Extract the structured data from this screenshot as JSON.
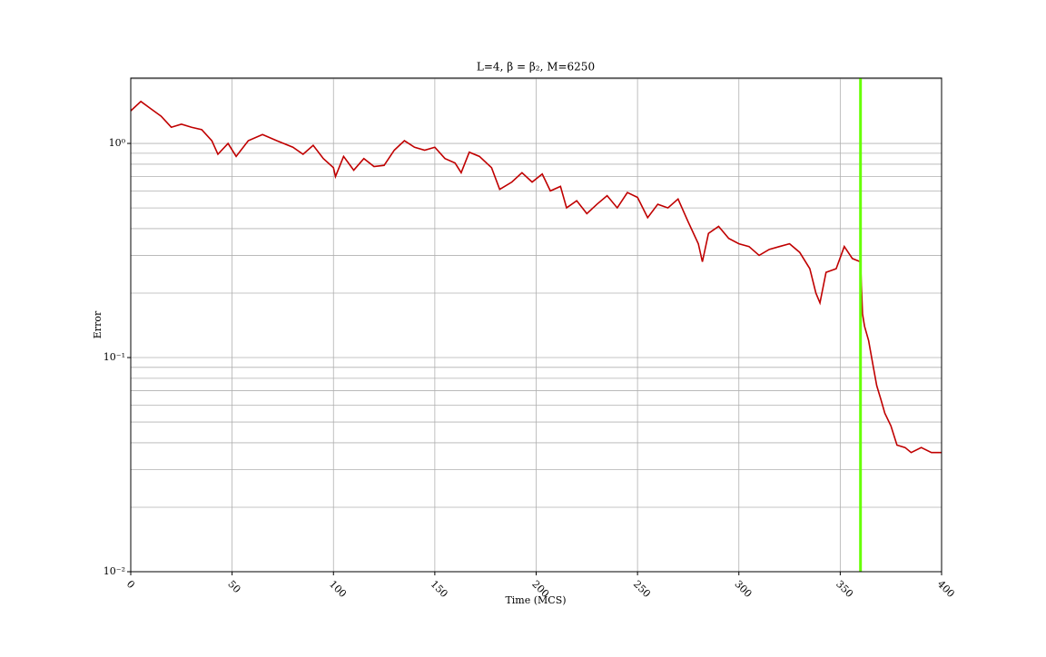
{
  "chart_data": {
    "type": "line",
    "title": "L=4, β = β₂, M=6250",
    "xlabel": "Time (MCS)",
    "ylabel": "Error",
    "x": [
      0,
      5,
      10,
      15,
      20,
      25,
      30,
      35,
      40,
      43,
      48,
      52,
      58,
      65,
      72,
      80,
      85,
      90,
      95,
      100,
      101,
      105,
      110,
      115,
      120,
      125,
      130,
      135,
      140,
      145,
      150,
      155,
      160,
      163,
      167,
      172,
      178,
      182,
      188,
      193,
      198,
      203,
      207,
      212,
      215,
      220,
      225,
      230,
      235,
      240,
      245,
      250,
      255,
      260,
      265,
      270,
      275,
      280,
      282,
      285,
      290,
      295,
      300,
      305,
      310,
      315,
      320,
      325,
      330,
      335,
      338,
      340,
      343,
      348,
      352,
      356,
      360,
      361,
      362,
      364,
      366,
      368,
      370,
      372,
      375,
      378,
      382,
      385,
      390,
      395,
      400
    ],
    "series": [
      {
        "name": "Error",
        "color": "#c00000",
        "values": [
          1.42,
          1.57,
          1.45,
          1.34,
          1.19,
          1.23,
          1.19,
          1.16,
          1.03,
          0.89,
          1.0,
          0.87,
          1.03,
          1.1,
          1.03,
          0.96,
          0.89,
          0.98,
          0.85,
          0.77,
          0.7,
          0.87,
          0.75,
          0.85,
          0.78,
          0.79,
          0.93,
          1.03,
          0.96,
          0.93,
          0.96,
          0.85,
          0.81,
          0.73,
          0.91,
          0.87,
          0.77,
          0.61,
          0.66,
          0.73,
          0.66,
          0.72,
          0.6,
          0.63,
          0.5,
          0.54,
          0.47,
          0.52,
          0.57,
          0.5,
          0.59,
          0.56,
          0.45,
          0.52,
          0.5,
          0.55,
          0.43,
          0.34,
          0.28,
          0.38,
          0.41,
          0.36,
          0.34,
          0.33,
          0.3,
          0.32,
          0.33,
          0.34,
          0.31,
          0.26,
          0.2,
          0.18,
          0.25,
          0.26,
          0.33,
          0.29,
          0.28,
          0.16,
          0.14,
          0.12,
          0.094,
          0.074,
          0.064,
          0.055,
          0.048,
          0.039,
          0.038,
          0.036,
          0.038,
          0.036,
          0.036
        ]
      }
    ],
    "vline": {
      "x": 360,
      "color": "#66ff00"
    },
    "xlim": [
      0,
      400
    ],
    "xticks": [
      0,
      50,
      100,
      150,
      200,
      250,
      300,
      350,
      400
    ],
    "ylim": [
      0.01,
      2.02
    ],
    "log_y": true,
    "yticks": [
      {
        "value": 1,
        "label": "10⁰"
      },
      {
        "value": 0.1,
        "label": "10⁻¹"
      },
      {
        "value": 0.01,
        "label": "10⁻²"
      }
    ],
    "yminorticks": [
      0.02,
      0.03,
      0.04,
      0.05,
      0.06,
      0.07,
      0.08,
      0.09,
      0.2,
      0.3,
      0.4,
      0.5,
      0.6,
      0.7,
      0.8,
      0.9,
      2
    ],
    "grid": true
  }
}
